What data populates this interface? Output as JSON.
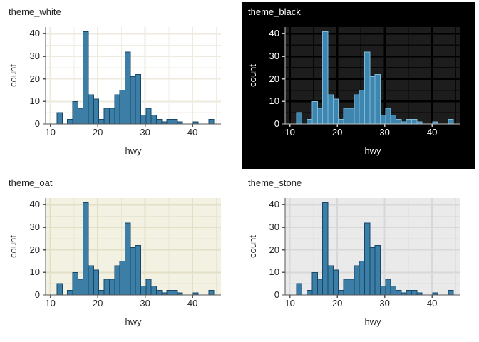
{
  "figure": {
    "background": "#ffffff"
  },
  "chart_data": {
    "type": "bar",
    "subtype": "histogram-small-multiples",
    "xlabel": "hwy",
    "ylabel": "count",
    "x_ticks": [
      10,
      20,
      30,
      40
    ],
    "y_ticks": [
      0,
      10,
      20,
      30,
      40
    ],
    "x_minor_gridlines": [
      15,
      25,
      35,
      45
    ],
    "y_minor_gridlines": [
      5,
      15,
      25,
      35
    ],
    "x_domain": [
      9.0,
      46.0
    ],
    "y_domain": [
      0,
      43
    ],
    "grid": "on",
    "bin_start": 11.414,
    "bin_width": 1.1034,
    "counts": [
      5,
      0,
      2,
      10,
      7,
      41,
      13,
      11,
      2,
      7,
      7,
      13,
      15,
      32,
      21,
      22,
      4,
      7,
      4,
      2,
      1,
      2,
      2,
      1,
      0,
      0,
      1,
      0,
      0,
      2
    ],
    "panels": [
      {
        "title": "theme_white",
        "outer_bg": "#ffffff",
        "panel_bg": "#ffffff",
        "grid_major": "#eeeade",
        "grid_minor": "#f1ede2",
        "grid_major_w": 2,
        "grid_minor_w": 1,
        "text": "#262626",
        "axis": "#555555",
        "bar_fill": "#3c7ea6",
        "bar_stroke": "#16486b"
      },
      {
        "title": "theme_black",
        "outer_bg": "#000000",
        "panel_bg": "#1d1d1d",
        "grid_major": "#000000",
        "grid_minor": "#070707",
        "grid_major_w": 2.5,
        "grid_minor_w": 1.4,
        "text": "#ffffff",
        "axis": "#c4c4c4",
        "bar_fill": "#3e86af",
        "bar_stroke": "#7cbad9"
      },
      {
        "title": "theme_oat",
        "outer_bg": "#ffffff",
        "panel_bg": "#f3f1e2",
        "grid_major": "#e3dfc7",
        "grid_minor": "#e9e5d3",
        "grid_major_w": 2,
        "grid_minor_w": 1,
        "text": "#262626",
        "axis": "#555555",
        "bar_fill": "#3c7ea6",
        "bar_stroke": "#16486b"
      },
      {
        "title": "theme_stone",
        "outer_bg": "#ffffff",
        "panel_bg": "#eaeaea",
        "grid_major": "#d8d8d8",
        "grid_minor": "#dfdfdf",
        "grid_major_w": 2,
        "grid_minor_w": 1,
        "text": "#262626",
        "axis": "#555555",
        "bar_fill": "#3c7ea6",
        "bar_stroke": "#16486b"
      }
    ]
  }
}
